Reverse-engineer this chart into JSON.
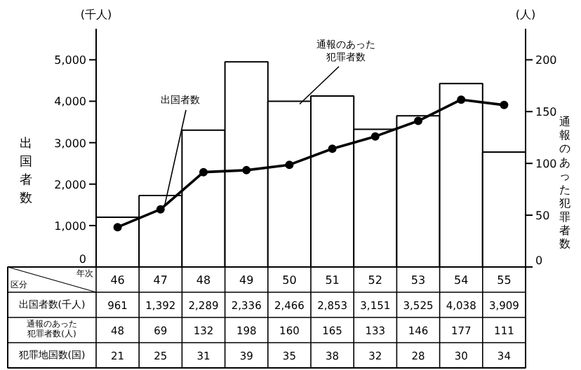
{
  "chart_data": {
    "type": "bar",
    "categories": [
      "46",
      "47",
      "48",
      "49",
      "50",
      "51",
      "52",
      "53",
      "54",
      "55"
    ],
    "ylabel": "出国者数",
    "y2label": "通報のあった犯罪者数",
    "ylim": [
      0,
      5750
    ],
    "yticks": [
      0,
      {
        "value": 1000,
        "label": "1,000"
      },
      {
        "value": 2000,
        "label": "2,000"
      },
      {
        "value": 3000,
        "label": "3,000"
      },
      {
        "value": 4000,
        "label": "4,000"
      },
      {
        "value": 5000,
        "label": "5,000"
      }
    ],
    "y2lim": [
      0,
      230
    ],
    "y2ticks": [
      0,
      50,
      100,
      150,
      200
    ],
    "series": [
      {
        "name": "出国者数",
        "type": "line",
        "axis": "y",
        "color": "#000000",
        "marker": "circle",
        "values": [
          961,
          1392,
          2289,
          2336,
          2466,
          2853,
          3151,
          3525,
          4038,
          3909
        ],
        "value_labels": [
          "961",
          "1,392",
          "2,289",
          "2,336",
          "2,466",
          "2,853",
          "3,151",
          "3,525",
          "4,038",
          "3,909"
        ]
      },
      {
        "name": "通報のあった犯罪者数",
        "axis": "y2",
        "color": "#ffffff",
        "values": [
          48,
          69,
          132,
          198,
          160,
          165,
          133,
          146,
          177,
          111
        ],
        "value_labels": [
          "48",
          "69",
          "132",
          "198",
          "160",
          "165",
          "133",
          "146",
          "177",
          "111"
        ]
      }
    ],
    "annotations": [
      "(千人)",
      "(人)",
      "年次",
      "区分",
      "出国者数(千人)",
      "通報のあった犯罪者数(人)",
      "犯罪地国数(国)",
      "21",
      "25",
      "31",
      "39",
      "35",
      "38",
      "32",
      "28",
      "30",
      "34"
    ]
  }
}
